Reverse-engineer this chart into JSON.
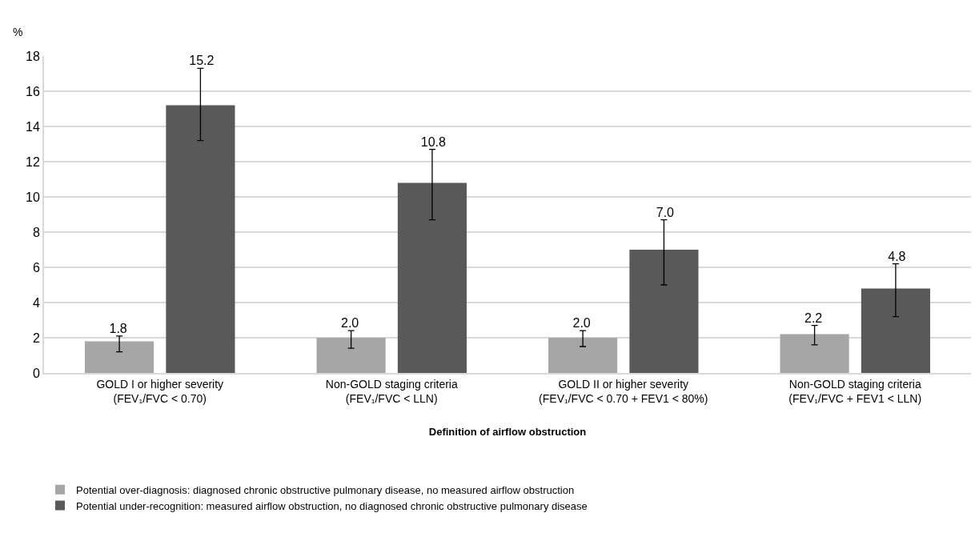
{
  "chart_data": {
    "type": "bar",
    "ylabel": "%",
    "xlabel": "Definition of airflow obstruction",
    "categories": [
      "GOLD I or higher severity\n(FEV₁/FVC < 0.70)",
      "Non-GOLD staging criteria\n(FEV₁/FVC < LLN)",
      "GOLD II or higher severity\n(FEV₁/FVC < 0.70 + FEV1 < 80%)",
      "Non-GOLD staging criteria\n(FEV₁/FVC + FEV1 < LLN)"
    ],
    "series": [
      {
        "name": "Potential over-diagnosis: diagnosed chronic obstructive pulmonary disease, no measured airflow obstruction",
        "color": "#a6a6a6",
        "values": [
          1.8,
          2.0,
          2.0,
          2.2
        ],
        "value_labels": [
          "1.8",
          "2.0",
          "2.0",
          "2.2"
        ],
        "errors": [
          [
            1.2,
            2.1
          ],
          [
            1.4,
            2.4
          ],
          [
            1.5,
            2.4
          ],
          [
            1.6,
            2.7
          ]
        ]
      },
      {
        "name": "Potential under-recognition: measured airflow obstruction, no diagnosed chronic obstructive pulmonary disease",
        "color": "#595959",
        "values": [
          15.2,
          10.8,
          7.0,
          4.8
        ],
        "value_labels": [
          "15.2",
          "10.8",
          "7.0",
          "4.8"
        ],
        "errors": [
          [
            13.2,
            17.3
          ],
          [
            8.7,
            12.7
          ],
          [
            5.0,
            8.7
          ],
          [
            3.2,
            6.2
          ]
        ]
      }
    ],
    "ylim": [
      0,
      18
    ],
    "yticks": [
      0,
      2,
      4,
      6,
      8,
      10,
      12,
      14,
      16,
      18
    ],
    "grid": "y",
    "legend": "bottom"
  }
}
